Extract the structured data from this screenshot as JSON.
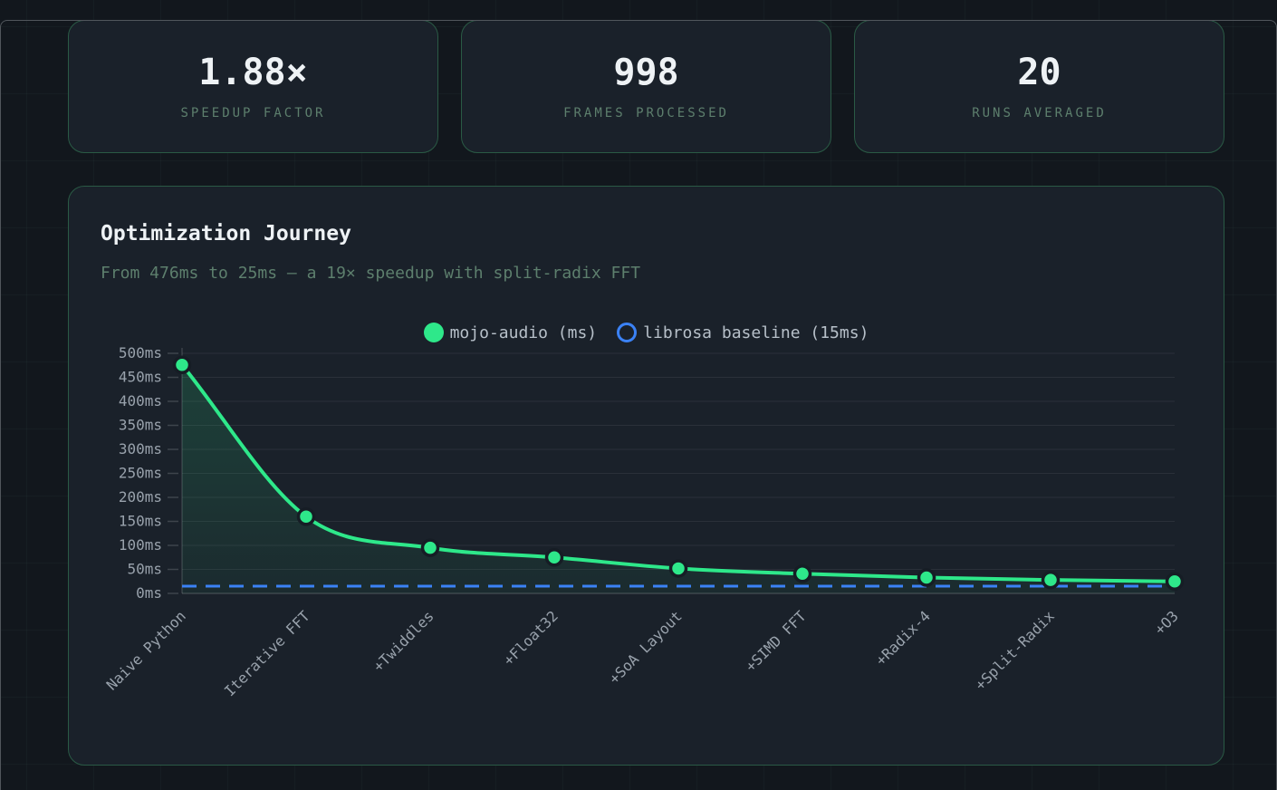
{
  "stats": [
    {
      "value": "1.88×",
      "label": "SPEEDUP FACTOR"
    },
    {
      "value": "998",
      "label": "FRAMES PROCESSED"
    },
    {
      "value": "20",
      "label": "RUNS AVERAGED"
    }
  ],
  "chart_card": {
    "title": "Optimization Journey",
    "subtitle": "From 476ms to 25ms — a 19× speedup with split-radix FFT"
  },
  "chart_data": {
    "type": "line",
    "categories": [
      "Naive Python",
      "Iterative FFT",
      "+Twiddles",
      "+Float32",
      "+SoA Layout",
      "+SIMD FFT",
      "+Radix-4",
      "+Split-Radix",
      "+O3"
    ],
    "series": [
      {
        "name": "mojo-audio (ms)",
        "values": [
          476,
          160,
          95,
          75,
          52,
          41,
          33,
          28,
          25
        ],
        "color": "#2ee88a",
        "style": "line-points-areafill"
      },
      {
        "name": "librosa baseline (15ms)",
        "values": [
          15,
          15,
          15,
          15,
          15,
          15,
          15,
          15,
          15
        ],
        "color": "#3b82f6",
        "style": "dashed-flat-line"
      }
    ],
    "title": "Optimization Journey",
    "xlabel": "",
    "ylabel": "",
    "ylim": [
      0,
      500
    ],
    "ytick_step": 50,
    "ytick_suffix": "ms",
    "grid": true,
    "legend_position": "top-center",
    "x_label_rotation_deg": -45
  },
  "colors": {
    "page_bg": "#12171d",
    "card_bg": "#1a212a",
    "card_border": "#2a5a45",
    "accent_green": "#2ee88a",
    "baseline_blue": "#3b82f6",
    "muted_green_text": "#5d7f6d",
    "axis_text": "#99a2ac",
    "legend_text": "#b7c0c9",
    "value_text": "#eef2f5"
  }
}
